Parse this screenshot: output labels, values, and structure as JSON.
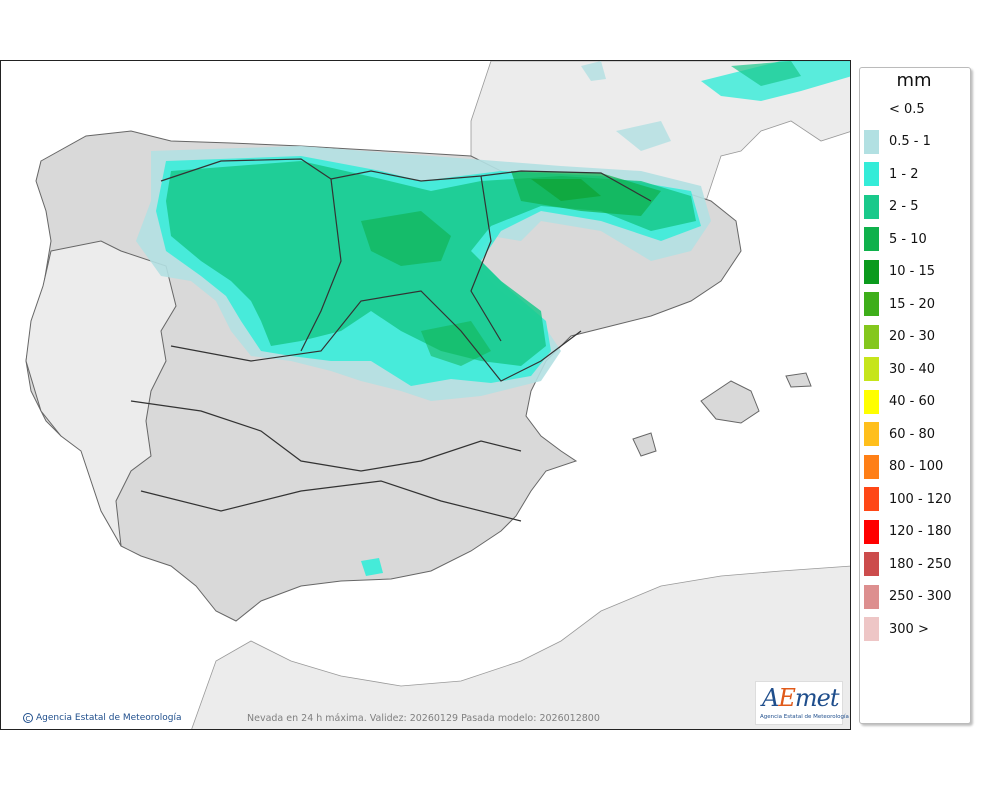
{
  "legend": {
    "unit": "mm",
    "items": [
      {
        "label": "< 0.5",
        "color": "#ffffff"
      },
      {
        "label": "0.5 - 1",
        "color": "#b2e0e2"
      },
      {
        "label": "1 - 2",
        "color": "#34ecd8"
      },
      {
        "label": "2 - 5",
        "color": "#19c98b"
      },
      {
        "label": "5 - 10",
        "color": "#0fb14c"
      },
      {
        "label": "10 - 15",
        "color": "#0b9a1d"
      },
      {
        "label": "15 - 20",
        "color": "#3eae1a"
      },
      {
        "label": "20 - 30",
        "color": "#84c71d"
      },
      {
        "label": "30 - 40",
        "color": "#c6e51b"
      },
      {
        "label": "40 - 60",
        "color": "#ffff00"
      },
      {
        "label": "60 - 80",
        "color": "#ffbf1c"
      },
      {
        "label": "80 - 100",
        "color": "#ff7f16"
      },
      {
        "label": "100 - 120",
        "color": "#ff4716"
      },
      {
        "label": "120 - 180",
        "color": "#ff0000"
      },
      {
        "label": "180 - 250",
        "color": "#cc4c4c"
      },
      {
        "label": "250 - 300",
        "color": "#dd8f8f"
      },
      {
        "label": "300 >",
        "color": "#eec6c6"
      }
    ]
  },
  "caption": "Nevada en 24 h máxima. Validez: 20260129 Pasada modelo: 2026012800",
  "credit": {
    "symbol": "C",
    "text": "Agencia Estatal de Meteorología"
  },
  "logo": {
    "part_a": "A",
    "part_e": "E",
    "part_met": "met",
    "subtitle": "Agencia Estatal de Meteorología"
  },
  "colors": {
    "land": "#d9d9d9",
    "foreign_land": "#ececec",
    "sea": "#ffffff",
    "border": "#333333"
  }
}
